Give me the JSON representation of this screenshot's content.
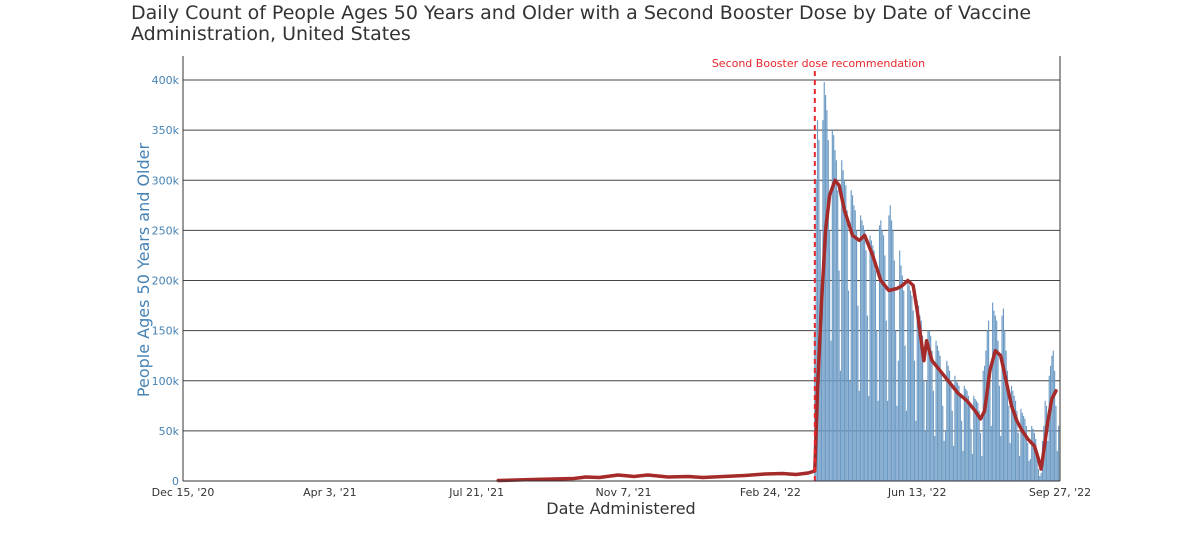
{
  "chart_data": {
    "type": "bar",
    "title": "Daily Count of People Ages 50 Years and Older with a Second Booster Dose by Date of Vaccine Administration, United States",
    "xlabel": "Date Administered",
    "ylabel": "People Ages 50 Years and Older",
    "ylim": [
      0,
      420000
    ],
    "xlim": [
      "2020-12-15",
      "2022-09-27"
    ],
    "y_ticks": [
      {
        "value": 0,
        "label": "0"
      },
      {
        "value": 50000,
        "label": "50k"
      },
      {
        "value": 100000,
        "label": "100k"
      },
      {
        "value": 150000,
        "label": "150k"
      },
      {
        "value": 200000,
        "label": "200k"
      },
      {
        "value": 250000,
        "label": "250k"
      },
      {
        "value": 300000,
        "label": "300k"
      },
      {
        "value": 350000,
        "label": "350k"
      },
      {
        "value": 400000,
        "label": "400k"
      }
    ],
    "x_ticks": [
      {
        "date": "2020-12-15",
        "label": "Dec 15, '20"
      },
      {
        "date": "2021-04-03",
        "label": "Apr 3, '21"
      },
      {
        "date": "2021-07-21",
        "label": "Jul 21, '21"
      },
      {
        "date": "2021-11-07",
        "label": "Nov 7, '21"
      },
      {
        "date": "2022-02-24",
        "label": "Feb 24, '22"
      },
      {
        "date": "2022-06-13",
        "label": "Jun 13, '22"
      },
      {
        "date": "2022-09-27",
        "label": "Sep 27, '22"
      }
    ],
    "grid": true,
    "annotation": {
      "date": "2022-03-29",
      "text": "Second Booster dose recommendation"
    },
    "daily_color": "#6b9ac4",
    "average_color": "#a52a2a",
    "annotation_color": "#e8262c",
    "average_series": [
      {
        "date": "2021-08-06",
        "value": 500
      },
      {
        "date": "2021-09-01",
        "value": 1500
      },
      {
        "date": "2021-10-01",
        "value": 2500
      },
      {
        "date": "2021-10-10",
        "value": 4000
      },
      {
        "date": "2021-10-20",
        "value": 3500
      },
      {
        "date": "2021-11-03",
        "value": 6000
      },
      {
        "date": "2021-11-15",
        "value": 4500
      },
      {
        "date": "2021-11-25",
        "value": 6000
      },
      {
        "date": "2021-12-10",
        "value": 4000
      },
      {
        "date": "2021-12-25",
        "value": 4500
      },
      {
        "date": "2022-01-05",
        "value": 3500
      },
      {
        "date": "2022-01-20",
        "value": 4500
      },
      {
        "date": "2022-02-05",
        "value": 5500
      },
      {
        "date": "2022-02-20",
        "value": 7000
      },
      {
        "date": "2022-03-05",
        "value": 7500
      },
      {
        "date": "2022-03-15",
        "value": 6500
      },
      {
        "date": "2022-03-24",
        "value": 8000
      },
      {
        "date": "2022-03-29",
        "value": 10000
      },
      {
        "date": "2022-03-31",
        "value": 90000
      },
      {
        "date": "2022-04-03",
        "value": 180000
      },
      {
        "date": "2022-04-06",
        "value": 250000
      },
      {
        "date": "2022-04-09",
        "value": 285000
      },
      {
        "date": "2022-04-13",
        "value": 300000
      },
      {
        "date": "2022-04-16",
        "value": 295000
      },
      {
        "date": "2022-04-20",
        "value": 270000
      },
      {
        "date": "2022-04-26",
        "value": 245000
      },
      {
        "date": "2022-05-01",
        "value": 240000
      },
      {
        "date": "2022-05-05",
        "value": 245000
      },
      {
        "date": "2022-05-11",
        "value": 225000
      },
      {
        "date": "2022-05-17",
        "value": 200000
      },
      {
        "date": "2022-05-23",
        "value": 190000
      },
      {
        "date": "2022-05-29",
        "value": 192000
      },
      {
        "date": "2022-06-02",
        "value": 195000
      },
      {
        "date": "2022-06-06",
        "value": 200000
      },
      {
        "date": "2022-06-10",
        "value": 195000
      },
      {
        "date": "2022-06-13",
        "value": 170000
      },
      {
        "date": "2022-06-16",
        "value": 140000
      },
      {
        "date": "2022-06-18",
        "value": 120000
      },
      {
        "date": "2022-06-20",
        "value": 140000
      },
      {
        "date": "2022-06-24",
        "value": 120000
      },
      {
        "date": "2022-06-30",
        "value": 110000
      },
      {
        "date": "2022-07-06",
        "value": 100000
      },
      {
        "date": "2022-07-13",
        "value": 88000
      },
      {
        "date": "2022-07-20",
        "value": 80000
      },
      {
        "date": "2022-07-26",
        "value": 70000
      },
      {
        "date": "2022-07-30",
        "value": 62000
      },
      {
        "date": "2022-08-02",
        "value": 70000
      },
      {
        "date": "2022-08-06",
        "value": 110000
      },
      {
        "date": "2022-08-10",
        "value": 130000
      },
      {
        "date": "2022-08-14",
        "value": 125000
      },
      {
        "date": "2022-08-18",
        "value": 100000
      },
      {
        "date": "2022-08-22",
        "value": 75000
      },
      {
        "date": "2022-08-26",
        "value": 60000
      },
      {
        "date": "2022-08-30",
        "value": 50000
      },
      {
        "date": "2022-09-03",
        "value": 42000
      },
      {
        "date": "2022-09-08",
        "value": 35000
      },
      {
        "date": "2022-09-11",
        "value": 22000
      },
      {
        "date": "2022-09-13",
        "value": 12000
      },
      {
        "date": "2022-09-15",
        "value": 30000
      },
      {
        "date": "2022-09-18",
        "value": 60000
      },
      {
        "date": "2022-09-21",
        "value": 82000
      },
      {
        "date": "2022-09-24",
        "value": 90000
      }
    ],
    "daily_series": [
      {
        "date": "2022-03-29",
        "value": 150000
      },
      {
        "date": "2022-03-30",
        "value": 300000
      },
      {
        "date": "2022-03-31",
        "value": 360000
      },
      {
        "date": "2022-04-01",
        "value": 340000
      },
      {
        "date": "2022-04-02",
        "value": 250000
      },
      {
        "date": "2022-04-03",
        "value": 150000
      },
      {
        "date": "2022-04-04",
        "value": 360000
      },
      {
        "date": "2022-04-05",
        "value": 398000
      },
      {
        "date": "2022-04-06",
        "value": 385000
      },
      {
        "date": "2022-04-07",
        "value": 370000
      },
      {
        "date": "2022-04-08",
        "value": 340000
      },
      {
        "date": "2022-04-09",
        "value": 250000
      },
      {
        "date": "2022-04-10",
        "value": 140000
      },
      {
        "date": "2022-04-11",
        "value": 350000
      },
      {
        "date": "2022-04-12",
        "value": 345000
      },
      {
        "date": "2022-04-13",
        "value": 330000
      },
      {
        "date": "2022-04-14",
        "value": 320000
      },
      {
        "date": "2022-04-15",
        "value": 290000
      },
      {
        "date": "2022-04-16",
        "value": 210000
      },
      {
        "date": "2022-04-17",
        "value": 110000
      },
      {
        "date": "2022-04-18",
        "value": 320000
      },
      {
        "date": "2022-04-19",
        "value": 310000
      },
      {
        "date": "2022-04-20",
        "value": 300000
      },
      {
        "date": "2022-04-21",
        "value": 295000
      },
      {
        "date": "2022-04-22",
        "value": 270000
      },
      {
        "date": "2022-04-23",
        "value": 190000
      },
      {
        "date": "2022-04-24",
        "value": 100000
      },
      {
        "date": "2022-04-25",
        "value": 290000
      },
      {
        "date": "2022-04-26",
        "value": 285000
      },
      {
        "date": "2022-04-27",
        "value": 275000
      },
      {
        "date": "2022-04-28",
        "value": 270000
      },
      {
        "date": "2022-04-29",
        "value": 250000
      },
      {
        "date": "2022-04-30",
        "value": 175000
      },
      {
        "date": "2022-05-01",
        "value": 90000
      },
      {
        "date": "2022-05-02",
        "value": 265000
      },
      {
        "date": "2022-05-03",
        "value": 260000
      },
      {
        "date": "2022-05-04",
        "value": 255000
      },
      {
        "date": "2022-05-05",
        "value": 250000
      },
      {
        "date": "2022-05-06",
        "value": 230000
      },
      {
        "date": "2022-05-07",
        "value": 165000
      },
      {
        "date": "2022-05-08",
        "value": 85000
      },
      {
        "date": "2022-05-09",
        "value": 245000
      },
      {
        "date": "2022-05-10",
        "value": 240000
      },
      {
        "date": "2022-05-11",
        "value": 235000
      },
      {
        "date": "2022-05-12",
        "value": 230000
      },
      {
        "date": "2022-05-13",
        "value": 210000
      },
      {
        "date": "2022-05-14",
        "value": 150000
      },
      {
        "date": "2022-05-15",
        "value": 80000
      },
      {
        "date": "2022-05-16",
        "value": 255000
      },
      {
        "date": "2022-05-17",
        "value": 260000
      },
      {
        "date": "2022-05-18",
        "value": 250000
      },
      {
        "date": "2022-05-19",
        "value": 245000
      },
      {
        "date": "2022-05-20",
        "value": 225000
      },
      {
        "date": "2022-05-21",
        "value": 160000
      },
      {
        "date": "2022-05-22",
        "value": 80000
      },
      {
        "date": "2022-05-23",
        "value": 265000
      },
      {
        "date": "2022-05-24",
        "value": 275000
      },
      {
        "date": "2022-05-25",
        "value": 260000
      },
      {
        "date": "2022-05-26",
        "value": 250000
      },
      {
        "date": "2022-05-27",
        "value": 220000
      },
      {
        "date": "2022-05-28",
        "value": 150000
      },
      {
        "date": "2022-05-29",
        "value": 75000
      },
      {
        "date": "2022-05-30",
        "value": 120000
      },
      {
        "date": "2022-05-31",
        "value": 230000
      },
      {
        "date": "2022-06-01",
        "value": 215000
      },
      {
        "date": "2022-06-02",
        "value": 205000
      },
      {
        "date": "2022-06-03",
        "value": 190000
      },
      {
        "date": "2022-06-04",
        "value": 135000
      },
      {
        "date": "2022-06-05",
        "value": 70000
      },
      {
        "date": "2022-06-06",
        "value": 200000
      },
      {
        "date": "2022-06-07",
        "value": 195000
      },
      {
        "date": "2022-06-08",
        "value": 190000
      },
      {
        "date": "2022-06-09",
        "value": 185000
      },
      {
        "date": "2022-06-10",
        "value": 170000
      },
      {
        "date": "2022-06-11",
        "value": 120000
      },
      {
        "date": "2022-06-12",
        "value": 60000
      },
      {
        "date": "2022-06-13",
        "value": 180000
      },
      {
        "date": "2022-06-14",
        "value": 175000
      },
      {
        "date": "2022-06-15",
        "value": 165000
      },
      {
        "date": "2022-06-16",
        "value": 160000
      },
      {
        "date": "2022-06-17",
        "value": 145000
      },
      {
        "date": "2022-06-18",
        "value": 100000
      },
      {
        "date": "2022-06-19",
        "value": 50000
      },
      {
        "date": "2022-06-20",
        "value": 100000
      },
      {
        "date": "2022-06-21",
        "value": 150000
      },
      {
        "date": "2022-06-22",
        "value": 150000
      },
      {
        "date": "2022-06-23",
        "value": 145000
      },
      {
        "date": "2022-06-24",
        "value": 130000
      },
      {
        "date": "2022-06-25",
        "value": 90000
      },
      {
        "date": "2022-06-26",
        "value": 45000
      },
      {
        "date": "2022-06-27",
        "value": 140000
      },
      {
        "date": "2022-06-28",
        "value": 135000
      },
      {
        "date": "2022-06-29",
        "value": 130000
      },
      {
        "date": "2022-06-30",
        "value": 125000
      },
      {
        "date": "2022-07-01",
        "value": 110000
      },
      {
        "date": "2022-07-02",
        "value": 75000
      },
      {
        "date": "2022-07-03",
        "value": 40000
      },
      {
        "date": "2022-07-04",
        "value": 50000
      },
      {
        "date": "2022-07-05",
        "value": 120000
      },
      {
        "date": "2022-07-06",
        "value": 115000
      },
      {
        "date": "2022-07-07",
        "value": 110000
      },
      {
        "date": "2022-07-08",
        "value": 100000
      },
      {
        "date": "2022-07-09",
        "value": 70000
      },
      {
        "date": "2022-07-10",
        "value": 35000
      },
      {
        "date": "2022-07-11",
        "value": 105000
      },
      {
        "date": "2022-07-12",
        "value": 100000
      },
      {
        "date": "2022-07-13",
        "value": 98000
      },
      {
        "date": "2022-07-14",
        "value": 95000
      },
      {
        "date": "2022-07-15",
        "value": 85000
      },
      {
        "date": "2022-07-16",
        "value": 60000
      },
      {
        "date": "2022-07-17",
        "value": 30000
      },
      {
        "date": "2022-07-18",
        "value": 95000
      },
      {
        "date": "2022-07-19",
        "value": 92000
      },
      {
        "date": "2022-07-20",
        "value": 90000
      },
      {
        "date": "2022-07-21",
        "value": 85000
      },
      {
        "date": "2022-07-22",
        "value": 75000
      },
      {
        "date": "2022-07-23",
        "value": 52000
      },
      {
        "date": "2022-07-24",
        "value": 27000
      },
      {
        "date": "2022-07-25",
        "value": 85000
      },
      {
        "date": "2022-07-26",
        "value": 82000
      },
      {
        "date": "2022-07-27",
        "value": 80000
      },
      {
        "date": "2022-07-28",
        "value": 78000
      },
      {
        "date": "2022-07-29",
        "value": 70000
      },
      {
        "date": "2022-07-30",
        "value": 48000
      },
      {
        "date": "2022-07-31",
        "value": 25000
      },
      {
        "date": "2022-08-01",
        "value": 110000
      },
      {
        "date": "2022-08-02",
        "value": 115000
      },
      {
        "date": "2022-08-03",
        "value": 130000
      },
      {
        "date": "2022-08-04",
        "value": 150000
      },
      {
        "date": "2022-08-05",
        "value": 160000
      },
      {
        "date": "2022-08-06",
        "value": 110000
      },
      {
        "date": "2022-08-07",
        "value": 55000
      },
      {
        "date": "2022-08-08",
        "value": 178000
      },
      {
        "date": "2022-08-09",
        "value": 170000
      },
      {
        "date": "2022-08-10",
        "value": 165000
      },
      {
        "date": "2022-08-11",
        "value": 160000
      },
      {
        "date": "2022-08-12",
        "value": 140000
      },
      {
        "date": "2022-08-13",
        "value": 95000
      },
      {
        "date": "2022-08-14",
        "value": 45000
      },
      {
        "date": "2022-08-15",
        "value": 165000
      },
      {
        "date": "2022-08-16",
        "value": 172000
      },
      {
        "date": "2022-08-17",
        "value": 150000
      },
      {
        "date": "2022-08-18",
        "value": 130000
      },
      {
        "date": "2022-08-19",
        "value": 110000
      },
      {
        "date": "2022-08-20",
        "value": 75000
      },
      {
        "date": "2022-08-21",
        "value": 38000
      },
      {
        "date": "2022-08-22",
        "value": 95000
      },
      {
        "date": "2022-08-23",
        "value": 90000
      },
      {
        "date": "2022-08-24",
        "value": 85000
      },
      {
        "date": "2022-08-25",
        "value": 80000
      },
      {
        "date": "2022-08-26",
        "value": 70000
      },
      {
        "date": "2022-08-27",
        "value": 48000
      },
      {
        "date": "2022-08-28",
        "value": 25000
      },
      {
        "date": "2022-08-29",
        "value": 72000
      },
      {
        "date": "2022-08-30",
        "value": 68000
      },
      {
        "date": "2022-08-31",
        "value": 65000
      },
      {
        "date": "2022-09-01",
        "value": 62000
      },
      {
        "date": "2022-09-02",
        "value": 55000
      },
      {
        "date": "2022-09-03",
        "value": 38000
      },
      {
        "date": "2022-09-04",
        "value": 20000
      },
      {
        "date": "2022-09-05",
        "value": 22000
      },
      {
        "date": "2022-09-06",
        "value": 55000
      },
      {
        "date": "2022-09-07",
        "value": 52000
      },
      {
        "date": "2022-09-08",
        "value": 48000
      },
      {
        "date": "2022-09-09",
        "value": 42000
      },
      {
        "date": "2022-09-10",
        "value": 28000
      },
      {
        "date": "2022-09-11",
        "value": 12000
      },
      {
        "date": "2022-09-12",
        "value": 5000
      },
      {
        "date": "2022-09-13",
        "value": 8000
      },
      {
        "date": "2022-09-14",
        "value": 40000
      },
      {
        "date": "2022-09-15",
        "value": 55000
      },
      {
        "date": "2022-09-16",
        "value": 80000
      },
      {
        "date": "2022-09-17",
        "value": 75000
      },
      {
        "date": "2022-09-18",
        "value": 40000
      },
      {
        "date": "2022-09-19",
        "value": 105000
      },
      {
        "date": "2022-09-20",
        "value": 115000
      },
      {
        "date": "2022-09-21",
        "value": 125000
      },
      {
        "date": "2022-09-22",
        "value": 130000
      },
      {
        "date": "2022-09-23",
        "value": 110000
      },
      {
        "date": "2022-09-24",
        "value": 75000
      },
      {
        "date": "2022-09-25",
        "value": 30000
      },
      {
        "date": "2022-09-26",
        "value": 55000
      }
    ]
  }
}
